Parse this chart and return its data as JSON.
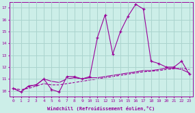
{
  "xlabel": "Windchill (Refroidissement éolien,°C)",
  "background_color": "#cceee8",
  "grid_color": "#aad4ce",
  "line_color": "#990099",
  "hours": [
    0,
    1,
    2,
    3,
    4,
    5,
    6,
    7,
    8,
    9,
    10,
    11,
    12,
    13,
    14,
    15,
    16,
    17,
    18,
    19,
    20,
    21,
    22,
    23
  ],
  "main_values": [
    10.2,
    9.9,
    10.4,
    10.5,
    11.0,
    10.1,
    9.9,
    11.2,
    11.2,
    11.0,
    11.2,
    14.5,
    16.4,
    13.1,
    15.0,
    16.3,
    17.3,
    16.9,
    12.5,
    12.3,
    12.0,
    12.0,
    12.5,
    11.4
  ],
  "trend1_values": [
    10.2,
    9.9,
    10.4,
    10.5,
    11.0,
    10.8,
    10.7,
    11.0,
    11.1,
    11.0,
    11.1,
    11.1,
    11.2,
    11.3,
    11.4,
    11.5,
    11.6,
    11.7,
    11.7,
    11.8,
    11.9,
    11.9,
    11.8,
    11.5
  ],
  "trend2_values": [
    10.2,
    10.1,
    10.2,
    10.4,
    10.6,
    10.5,
    10.5,
    10.6,
    10.7,
    10.8,
    10.9,
    11.0,
    11.1,
    11.2,
    11.3,
    11.4,
    11.5,
    11.6,
    11.65,
    11.7,
    11.8,
    11.85,
    11.9,
    11.8
  ],
  "ylim": [
    9.5,
    17.5
  ],
  "yticks": [
    10,
    11,
    12,
    13,
    14,
    15,
    16,
    17
  ],
  "xlim": [
    -0.5,
    23.5
  ]
}
